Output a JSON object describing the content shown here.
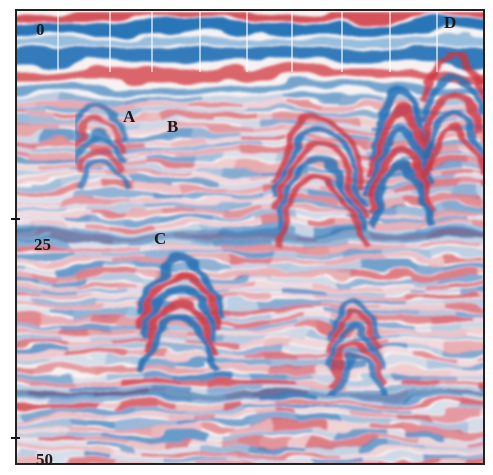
{
  "axis": {
    "ticks": [
      0,
      25,
      50
    ]
  },
  "markers": [
    "A",
    "B",
    "C",
    "D"
  ]
}
